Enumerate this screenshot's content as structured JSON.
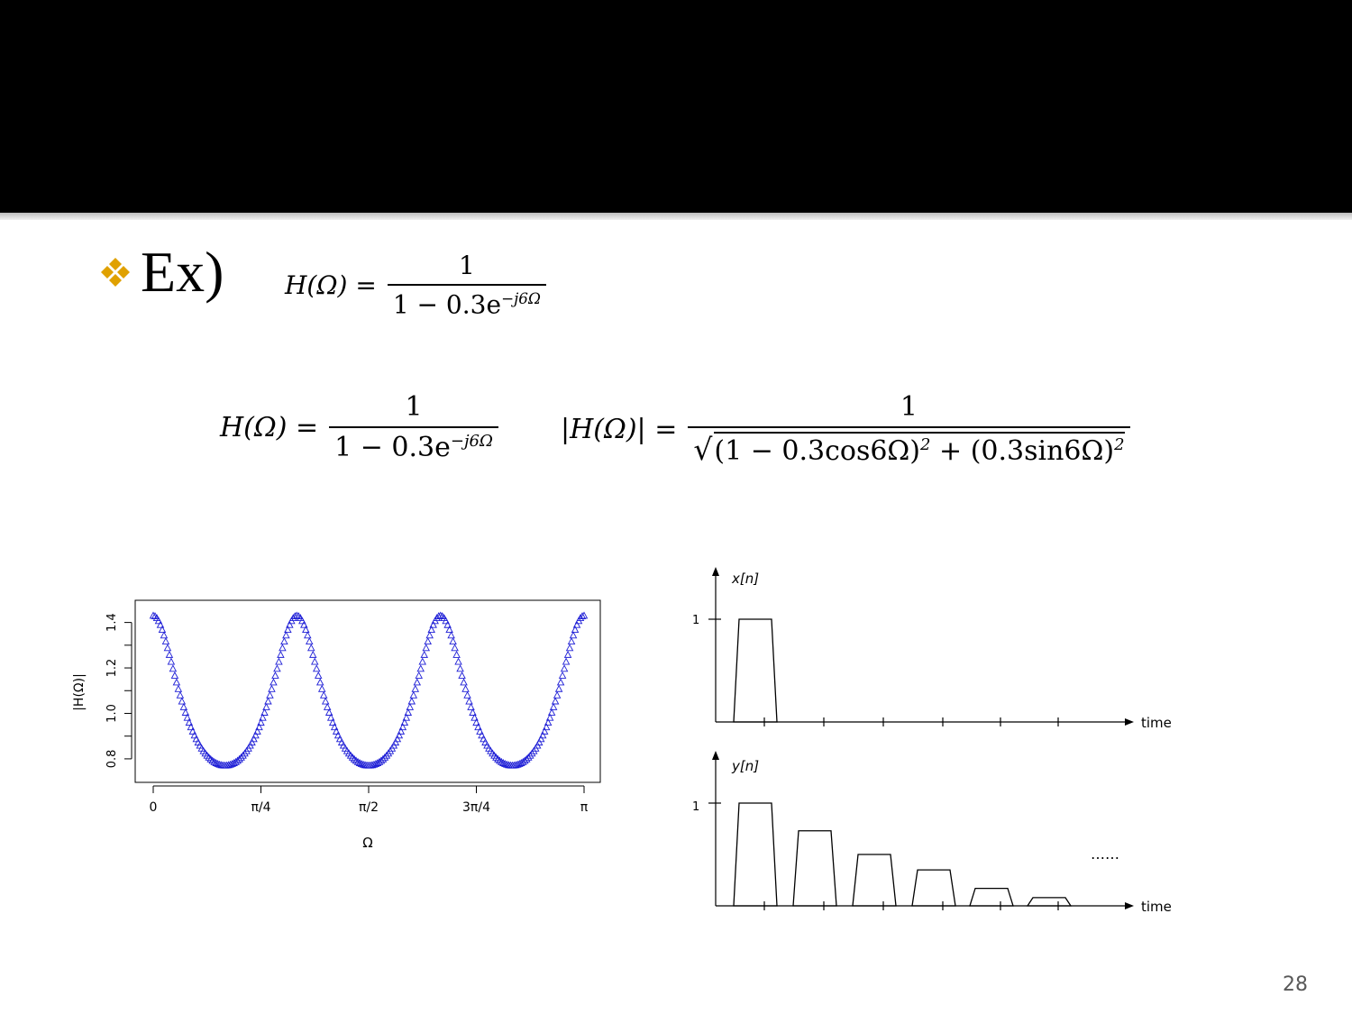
{
  "slide": {
    "bullet_text": "Ex)",
    "page_number": "28",
    "accent_color": "#e0a100"
  },
  "equations": {
    "eq1": {
      "lhs": "H(Ω) =",
      "numerator": "1",
      "denominator": "1 − 0.3e",
      "exponent": "−j6Ω"
    },
    "eq2": {
      "lhs": "H(Ω) =",
      "numerator": "1",
      "denominator": "1 − 0.3e",
      "exponent": "−j6Ω"
    },
    "eq3": {
      "lhs": "|H(Ω)| =",
      "numerator": "1",
      "sqrt_term1": "(1 − 0.3cos6Ω)",
      "sqrt_term2": "(0.3sin6Ω)",
      "power": "2",
      "plus": "+"
    }
  },
  "chart_data": [
    {
      "type": "scatter",
      "marker": "triangle",
      "color": "#1f1fd6",
      "xlabel": "Ω",
      "ylabel": "|H(Ω)|",
      "xlim": [
        0,
        3.1416
      ],
      "ylim": [
        0.76,
        1.45
      ],
      "xtick_labels": [
        "0",
        "π/4",
        "π/2",
        "3π/4",
        "π"
      ],
      "xtick_values": [
        0,
        0.7854,
        1.5708,
        2.3562,
        3.1416
      ],
      "ytick_labels": [
        "0.8",
        "1.0",
        "1.2",
        "1.4"
      ],
      "ytick_values": [
        0.8,
        1.0,
        1.2,
        1.4
      ],
      "function": "1 / sqrt((1 - 0.3cos6Ω)^2 + (0.3sin6Ω)^2)",
      "peaks": [
        [
          0,
          1.4286
        ],
        [
          1.0472,
          1.4286
        ],
        [
          2.0944,
          1.4286
        ],
        [
          3.1416,
          1.4286
        ]
      ],
      "troughs": [
        [
          0.5236,
          0.7692
        ],
        [
          1.5708,
          0.7692
        ],
        [
          2.618,
          0.7692
        ]
      ],
      "grid": false
    },
    {
      "type": "bar",
      "signal_label": "x[n]",
      "xlabel": "time",
      "y_tick_label": "1",
      "values": [
        1,
        0,
        0,
        0,
        0,
        0
      ]
    },
    {
      "type": "bar",
      "signal_label": "y[n]",
      "xlabel": "time",
      "y_tick_label": "1",
      "values": [
        1,
        0.73,
        0.5,
        0.35,
        0.17,
        0.08
      ],
      "continuation": "……"
    }
  ]
}
